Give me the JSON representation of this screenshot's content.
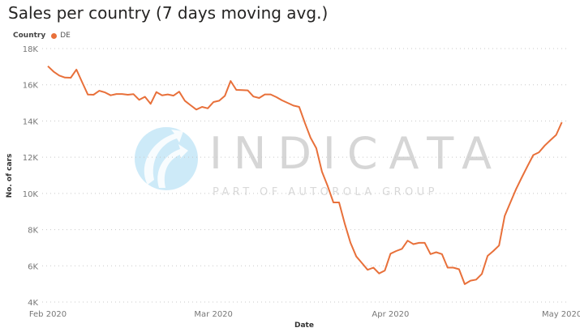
{
  "chart_data": {
    "type": "line",
    "title": "Sales per country (7 days moving avg.)",
    "legend_title": "Country",
    "legend_placement": "top-left",
    "xlabel": "Date",
    "ylabel": "No. of cars",
    "ylim": [
      4000,
      18000
    ],
    "yticks": [
      4000,
      6000,
      8000,
      10000,
      12000,
      14000,
      16000,
      18000
    ],
    "ytick_labels": [
      "4K",
      "6K",
      "8K",
      "10K",
      "12K",
      "14K",
      "16K",
      "18K"
    ],
    "xticks_day_offset": [
      0,
      29,
      60,
      90
    ],
    "xtick_labels": [
      "Feb 2020",
      "Mar 2020",
      "Apr 2020",
      "May 2020"
    ],
    "start_date": "2020-02-01",
    "grid": "horizontal dotted",
    "series": [
      {
        "name": "DE",
        "color": "#E8703A",
        "values": [
          17030,
          16730,
          16510,
          16400,
          16390,
          16840,
          16150,
          15460,
          15450,
          15670,
          15580,
          15420,
          15490,
          15490,
          15450,
          15480,
          15170,
          15340,
          14950,
          15600,
          15420,
          15470,
          15400,
          15620,
          15110,
          14870,
          14630,
          14780,
          14700,
          15050,
          15120,
          15390,
          16210,
          15720,
          15710,
          15690,
          15350,
          15270,
          15470,
          15470,
          15320,
          15140,
          15000,
          14850,
          14780,
          13900,
          13080,
          12500,
          11200,
          10400,
          9500,
          9500,
          8310,
          7270,
          6520,
          6150,
          5780,
          5900,
          5580,
          5740,
          6670,
          6820,
          6940,
          7390,
          7200,
          7270,
          7270,
          6650,
          6750,
          6650,
          5900,
          5900,
          5810,
          4990,
          5180,
          5240,
          5550,
          6550,
          6820,
          7120,
          8760,
          9500,
          10250,
          10890,
          11520,
          12120,
          12270,
          12640,
          12940,
          13230,
          13930
        ]
      }
    ]
  },
  "watermark": {
    "brand": "INDICATA",
    "tagline": "PART OF AUTOROLA GROUP",
    "logo_color": "#cdeaf8",
    "text_color": "#d6d6d6"
  }
}
